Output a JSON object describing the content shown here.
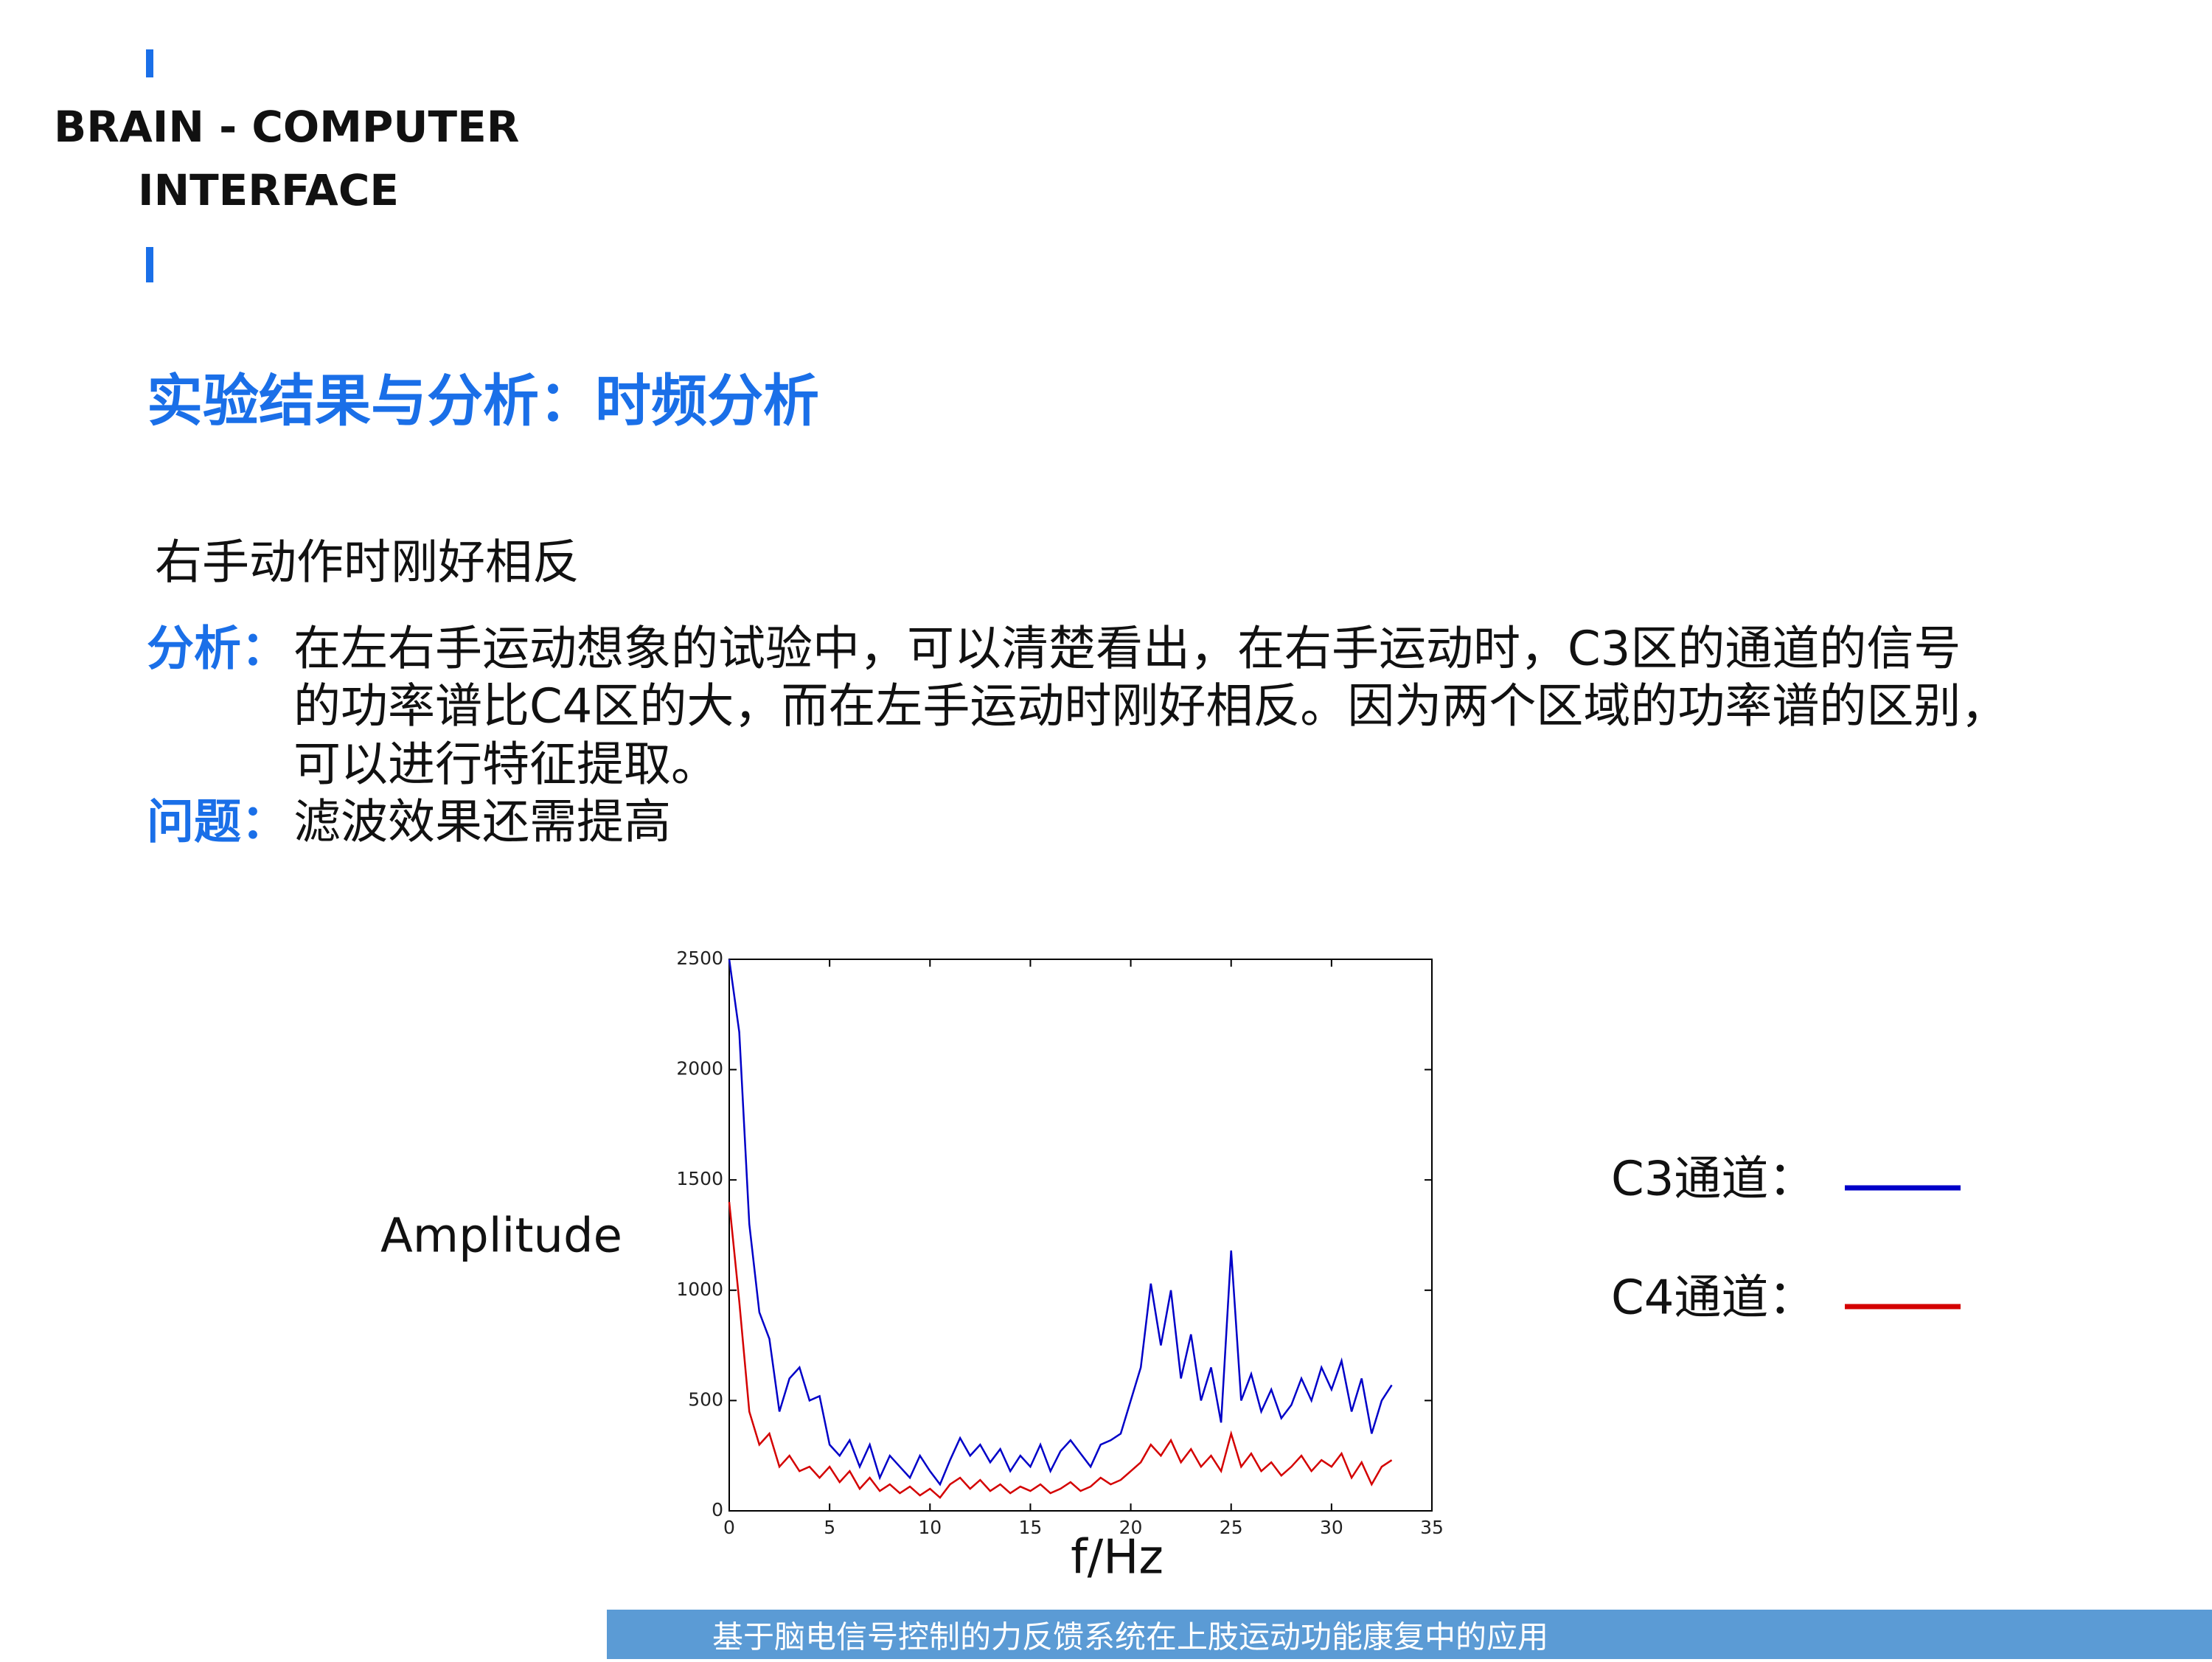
{
  "header": {
    "brand_lines": [
      "BRAIN - COMPUTER",
      "INTERFACE"
    ],
    "title": "实验结果与分析：时频分析"
  },
  "intro": "右手动作时刚好相反",
  "analysis": {
    "label": "分析：",
    "lines": [
      "在左右手运动想象的试验中，可以清楚看出，在右手运动时，C3区的通道的信号",
      "的功率谱比C4区的大，而在左手运动时刚好相反。因为两个区域的功率谱的区别，",
      "可以进行特征提取。"
    ]
  },
  "problem": {
    "label": "问题：",
    "text": "滤波效果还需提高"
  },
  "chart_data": {
    "type": "line",
    "ylabel": "Amplitude",
    "xlabel": "f/Hz",
    "xlim": [
      0,
      35
    ],
    "xticks": [
      0,
      5,
      10,
      15,
      20,
      25,
      30,
      35
    ],
    "ylim": [
      0,
      2500
    ],
    "yticks": [
      0,
      500,
      1000,
      1500,
      2000,
      2500
    ],
    "grid": false,
    "x": [
      0,
      0.5,
      1,
      1.5,
      2,
      2.5,
      3,
      3.5,
      4,
      4.5,
      5,
      5.5,
      6,
      6.5,
      7,
      7.5,
      8,
      8.5,
      9,
      9.5,
      10,
      10.5,
      11,
      11.5,
      12,
      12.5,
      13,
      13.5,
      14,
      14.5,
      15,
      15.5,
      16,
      16.5,
      17,
      17.5,
      18,
      18.5,
      19,
      19.5,
      20,
      20.5,
      21,
      21.5,
      22,
      22.5,
      23,
      23.5,
      24,
      24.5,
      25,
      25.5,
      26,
      26.5,
      27,
      27.5,
      28,
      28.5,
      29,
      29.5,
      30,
      30.5,
      31,
      31.5,
      32,
      32.5,
      33
    ],
    "series": [
      {
        "name": "C3通道：",
        "color": "#0000c8",
        "values": [
          2500,
          2170,
          1300,
          900,
          780,
          450,
          600,
          650,
          500,
          520,
          300,
          250,
          320,
          200,
          300,
          150,
          250,
          200,
          150,
          250,
          180,
          120,
          230,
          330,
          250,
          300,
          220,
          280,
          180,
          250,
          200,
          300,
          180,
          270,
          320,
          260,
          200,
          300,
          320,
          350,
          500,
          650,
          1030,
          750,
          1000,
          600,
          800,
          500,
          650,
          400,
          1180,
          500,
          620,
          450,
          550,
          420,
          480,
          600,
          500,
          650,
          550,
          680,
          450,
          600,
          350,
          500,
          570
        ]
      },
      {
        "name": "C4通道：",
        "color": "#d40000",
        "values": [
          1400,
          950,
          450,
          300,
          350,
          200,
          250,
          180,
          200,
          150,
          200,
          130,
          180,
          100,
          150,
          90,
          120,
          80,
          110,
          70,
          100,
          60,
          120,
          150,
          100,
          140,
          90,
          120,
          80,
          110,
          90,
          120,
          80,
          100,
          130,
          90,
          110,
          150,
          120,
          140,
          180,
          220,
          300,
          250,
          320,
          220,
          280,
          200,
          250,
          180,
          350,
          200,
          260,
          180,
          220,
          160,
          200,
          250,
          180,
          230,
          200,
          260,
          150,
          220,
          120,
          200,
          230
        ]
      }
    ]
  },
  "footer": "基于脑电信号控制的力反馈系统在上肢运动功能康复中的应用"
}
